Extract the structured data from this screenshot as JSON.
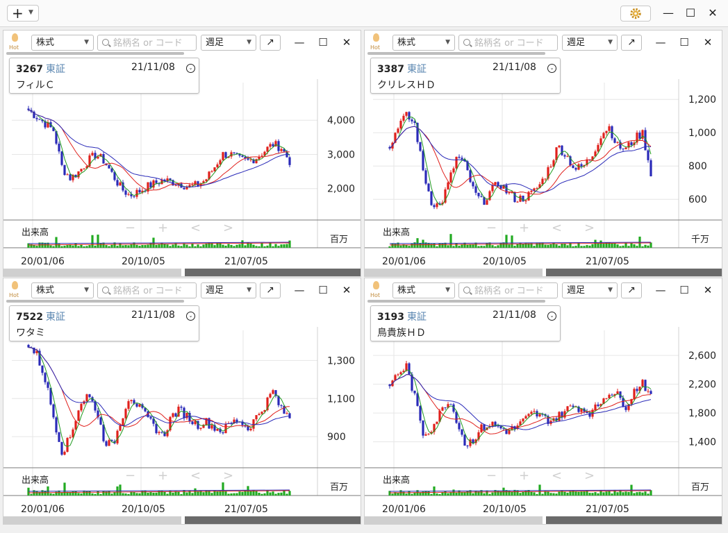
{
  "toolbar": {
    "add_label": "+",
    "add_chevron": "⌄",
    "gear_icon": "gear-icon",
    "minimize": "—",
    "maximize": "☐",
    "close": "✕"
  },
  "panel_common": {
    "hot_label": "Hot",
    "type_label": "株式",
    "search_placeholder": "銘柄名 or コード",
    "period_label": "週足",
    "expand_label": "↗",
    "minimize": "—",
    "maximize": "☐",
    "close": "✕",
    "volume_label": "出来高",
    "nav": [
      "−",
      "+",
      "<",
      ">"
    ],
    "x_ticks": [
      "20/01/06",
      "20/10/05",
      "21/07/05"
    ],
    "date": "21/11/08",
    "exchange": "東証"
  },
  "panels": [
    {
      "code": "3267",
      "name": "フィルＣ",
      "volume_unit": "百万",
      "chart_data": {
        "type": "candlestick",
        "y_ticks": [
          "4,000",
          "3,000",
          "2,000"
        ],
        "y_values": [
          4000,
          3000,
          2000
        ],
        "ylim": [
          1100,
          5000
        ],
        "price_path": [
          4300,
          4100,
          3900,
          3700,
          2600,
          2300,
          2500,
          2800,
          3000,
          2800,
          2400,
          2000,
          1800,
          1900,
          2050,
          2150,
          2250,
          2200,
          2150,
          2050,
          2100,
          2250,
          2600,
          3000,
          3000,
          2850,
          2800,
          2900,
          3100,
          3300,
          3200,
          2800
        ]
      }
    },
    {
      "code": "3387",
      "name": "クリレスＨＤ",
      "volume_unit": "千万",
      "chart_data": {
        "type": "candlestick",
        "y_ticks": [
          "1,200",
          "1,000",
          "800",
          "600"
        ],
        "y_values": [
          1200,
          1000,
          800,
          600
        ],
        "ylim": [
          480,
          1280
        ],
        "price_path": [
          900,
          1050,
          1100,
          1050,
          760,
          580,
          560,
          700,
          860,
          800,
          640,
          580,
          650,
          700,
          640,
          600,
          610,
          640,
          700,
          800,
          920,
          860,
          780,
          800,
          860,
          980,
          1040,
          920,
          900,
          960,
          1000,
          760
        ]
      }
    },
    {
      "code": "7522",
      "name": "ワタミ",
      "volume_unit": "百万",
      "chart_data": {
        "type": "candlestick",
        "y_ticks": [
          "1,300",
          "1,100",
          "900"
        ],
        "y_values": [
          1300,
          1100,
          900
        ],
        "ylim": [
          740,
          1440
        ],
        "price_path": [
          1380,
          1330,
          1200,
          1000,
          820,
          900,
          1060,
          1120,
          1050,
          880,
          850,
          990,
          1120,
          1060,
          1000,
          950,
          900,
          1010,
          1040,
          1000,
          960,
          980,
          950,
          930,
          970,
          990,
          940,
          1000,
          1060,
          1140,
          1040,
          1000
        ]
      }
    },
    {
      "code": "3193",
      "name": "鳥貴族ＨＤ",
      "volume_unit": "百万",
      "chart_data": {
        "type": "candlestick",
        "y_ticks": [
          "2,600",
          "2,200",
          "1,800",
          "1,400"
        ],
        "y_values": [
          2600,
          2200,
          1800,
          1400
        ],
        "ylim": [
          1050,
          2900
        ],
        "price_path": [
          2200,
          2350,
          2450,
          2000,
          1500,
          1600,
          1800,
          2000,
          1700,
          1350,
          1450,
          1600,
          1650,
          1600,
          1550,
          1600,
          1700,
          1800,
          1750,
          1700,
          1750,
          1850,
          1900,
          1850,
          1800,
          1950,
          2100,
          2050,
          1900,
          2100,
          2250,
          2000
        ]
      }
    }
  ]
}
